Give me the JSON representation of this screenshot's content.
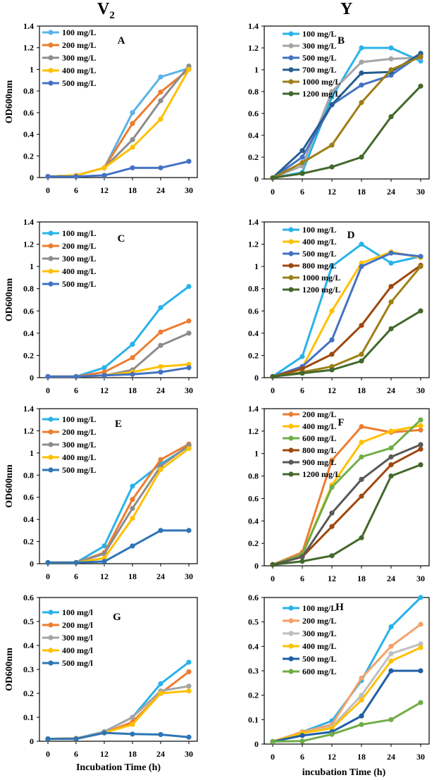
{
  "column_titles": {
    "left": "V",
    "left_sub": "2",
    "right": "Y"
  },
  "chart_data": [
    {
      "panel": "A",
      "type": "line",
      "x": [
        0,
        6,
        12,
        18,
        24,
        30
      ],
      "ylim": [
        0,
        1.4
      ],
      "yticks": [
        0,
        0.2,
        0.4,
        0.6,
        0.8,
        1,
        1.2,
        1.4
      ],
      "ylabel": "OD600nm",
      "xlabel": "",
      "series": [
        {
          "name": "100 mg/L",
          "color": "#5BB3E6",
          "values": [
            0.01,
            0.02,
            0.09,
            0.6,
            0.93,
            1.01
          ]
        },
        {
          "name": "200 mg/L",
          "color": "#ED7D31",
          "values": [
            0.01,
            0.02,
            0.09,
            0.5,
            0.79,
            1.0
          ]
        },
        {
          "name": "300 mg/L",
          "color": "#8C8C8C",
          "values": [
            0.01,
            0.02,
            0.09,
            0.35,
            0.71,
            1.03
          ]
        },
        {
          "name": "400 mg/L",
          "color": "#FFC000",
          "values": [
            0.01,
            0.02,
            0.09,
            0.28,
            0.54,
            1.0
          ]
        },
        {
          "name": "500 mg/L",
          "color": "#4472C4",
          "values": [
            0.01,
            0.01,
            0.02,
            0.09,
            0.09,
            0.15
          ]
        }
      ]
    },
    {
      "panel": "B",
      "type": "line",
      "x": [
        0,
        6,
        12,
        18,
        24,
        30
      ],
      "ylim": [
        0,
        1.4
      ],
      "yticks": [
        0,
        0.2,
        0.4,
        0.6,
        0.8,
        1,
        1.2,
        1.4
      ],
      "ylabel": "",
      "xlabel": "",
      "series": [
        {
          "name": "100 mg/L",
          "color": "#29B2EA",
          "values": [
            0.01,
            0.06,
            0.75,
            1.2,
            1.2,
            1.08
          ]
        },
        {
          "name": "300 mg/L",
          "color": "#A5A5A5",
          "values": [
            0.01,
            0.12,
            0.8,
            1.07,
            1.1,
            1.11
          ]
        },
        {
          "name": "500 mg/L",
          "color": "#4472C4",
          "values": [
            0.01,
            0.2,
            0.68,
            0.86,
            0.95,
            1.14
          ]
        },
        {
          "name": "700 mg/L",
          "color": "#255E91",
          "values": [
            0.01,
            0.26,
            0.68,
            0.97,
            0.98,
            1.15
          ]
        },
        {
          "name": "1000 mg/L",
          "color": "#9E7E16",
          "values": [
            0.01,
            0.15,
            0.31,
            0.7,
            1.0,
            1.12
          ]
        },
        {
          "name": "1200 mg/L",
          "color": "#43682B",
          "values": [
            0.01,
            0.05,
            0.11,
            0.2,
            0.57,
            0.85
          ]
        }
      ]
    },
    {
      "panel": "C",
      "type": "line",
      "x": [
        0,
        6,
        12,
        18,
        24,
        30
      ],
      "ylim": [
        0,
        1.4
      ],
      "yticks": [
        0,
        0.2,
        0.4,
        0.6,
        0.8,
        1,
        1.2,
        1.4
      ],
      "ylabel": "OD600nm",
      "xlabel": "",
      "series": [
        {
          "name": "100 mg/L",
          "color": "#29B2EA",
          "values": [
            0.01,
            0.01,
            0.09,
            0.3,
            0.63,
            0.82
          ]
        },
        {
          "name": "200 mg/L",
          "color": "#ED7D31",
          "values": [
            0.01,
            0.01,
            0.05,
            0.18,
            0.41,
            0.51
          ]
        },
        {
          "name": "300 mg/L",
          "color": "#8C8C8C",
          "values": [
            0.01,
            0.01,
            0.02,
            0.07,
            0.29,
            0.4
          ]
        },
        {
          "name": "400 mg/L",
          "color": "#FFC000",
          "values": [
            0.01,
            0.01,
            0.02,
            0.05,
            0.1,
            0.12
          ]
        },
        {
          "name": "500 mg/L",
          "color": "#4472C4",
          "values": [
            0.01,
            0.01,
            0.02,
            0.03,
            0.05,
            0.09
          ]
        }
      ]
    },
    {
      "panel": "D",
      "type": "line",
      "x": [
        0,
        6,
        12,
        18,
        24,
        30
      ],
      "ylim": [
        0,
        1.4
      ],
      "yticks": [
        0,
        0.2,
        0.4,
        0.6,
        0.8,
        1,
        1.2,
        1.4
      ],
      "ylabel": "",
      "xlabel": "",
      "series": [
        {
          "name": "100 mg/L",
          "color": "#29B2EA",
          "values": [
            0.01,
            0.19,
            1.0,
            1.2,
            1.03,
            1.09
          ]
        },
        {
          "name": "400 mg/L",
          "color": "#FFC000",
          "values": [
            0.01,
            0.09,
            0.6,
            1.03,
            1.13,
            1.08
          ]
        },
        {
          "name": "500 mg/L",
          "color": "#4472C4",
          "values": [
            0.01,
            0.1,
            0.34,
            1.0,
            1.12,
            1.09
          ]
        },
        {
          "name": "800 mg/L",
          "color": "#9E480E",
          "values": [
            0.01,
            0.08,
            0.21,
            0.47,
            0.82,
            1.01
          ]
        },
        {
          "name": "1000 mg/L",
          "color": "#9E7E16",
          "values": [
            0.01,
            0.05,
            0.1,
            0.21,
            0.68,
            1.0
          ]
        },
        {
          "name": "1200 mg/L",
          "color": "#43682B",
          "values": [
            0.01,
            0.04,
            0.07,
            0.15,
            0.44,
            0.6
          ]
        }
      ]
    },
    {
      "panel": "E",
      "type": "line",
      "x": [
        0,
        6,
        12,
        18,
        24,
        30
      ],
      "ylim": [
        0,
        1.4
      ],
      "yticks": [
        0,
        0.2,
        0.4,
        0.6,
        0.8,
        1,
        1.2,
        1.4
      ],
      "ylabel": "OD600nm",
      "xlabel": "",
      "series": [
        {
          "name": "100 mg/L",
          "color": "#29B2EA",
          "values": [
            0.01,
            0.01,
            0.16,
            0.7,
            0.9,
            1.06
          ]
        },
        {
          "name": "200 mg/L",
          "color": "#ED7D31",
          "values": [
            0.01,
            0.01,
            0.1,
            0.58,
            0.94,
            1.08
          ]
        },
        {
          "name": "300 mg/L",
          "color": "#8C8C8C",
          "values": [
            0.01,
            0.01,
            0.09,
            0.5,
            0.88,
            1.07
          ]
        },
        {
          "name": "400 mg/L",
          "color": "#FFC000",
          "values": [
            0.01,
            0.01,
            0.05,
            0.41,
            0.85,
            1.04
          ]
        },
        {
          "name": "500 mg/L",
          "color": "#2E75B6",
          "values": [
            0.01,
            0.01,
            0.02,
            0.16,
            0.3,
            0.3
          ]
        }
      ]
    },
    {
      "panel": "F",
      "type": "line",
      "x": [
        0,
        6,
        12,
        18,
        24,
        30
      ],
      "ylim": [
        0,
        1.4
      ],
      "yticks": [
        0,
        0.2,
        0.4,
        0.6,
        0.8,
        1,
        1.2,
        1.4
      ],
      "ylabel": "",
      "xlabel": "",
      "series": [
        {
          "name": "200 mg/L",
          "color": "#ED7D31",
          "values": [
            0.01,
            0.12,
            0.94,
            1.24,
            1.19,
            1.21
          ]
        },
        {
          "name": "400 mg/L",
          "color": "#FFC000",
          "values": [
            0.01,
            0.1,
            0.72,
            1.1,
            1.2,
            1.25
          ]
        },
        {
          "name": "600 mg/L",
          "color": "#70AD47",
          "values": [
            0.01,
            0.1,
            0.7,
            0.97,
            1.05,
            1.3
          ]
        },
        {
          "name": "800 mg/L",
          "color": "#9E480E",
          "values": [
            0.01,
            0.08,
            0.35,
            0.62,
            0.9,
            1.04
          ]
        },
        {
          "name": "900 mg/L",
          "color": "#595959",
          "values": [
            0.01,
            0.08,
            0.47,
            0.77,
            0.97,
            1.08
          ]
        },
        {
          "name": "1200 mg/L",
          "color": "#43682B",
          "values": [
            0.01,
            0.04,
            0.09,
            0.25,
            0.8,
            0.9
          ]
        }
      ]
    },
    {
      "panel": "G",
      "type": "line",
      "x": [
        0,
        6,
        12,
        18,
        24,
        30
      ],
      "ylim": [
        0,
        0.6
      ],
      "yticks": [
        0,
        0.1,
        0.2,
        0.3,
        0.4,
        0.5,
        0.6
      ],
      "ylabel": "OD600nm",
      "xlabel": "Incubation Time (h)",
      "series": [
        {
          "name": "100 mg/l",
          "color": "#29B2EA",
          "values": [
            0.01,
            0.012,
            0.04,
            0.1,
            0.24,
            0.33
          ]
        },
        {
          "name": "200 mg/l",
          "color": "#ED7D31",
          "values": [
            0.01,
            0.012,
            0.035,
            0.08,
            0.2,
            0.29
          ]
        },
        {
          "name": "300 mg/l",
          "color": "#A5A5A5",
          "values": [
            0.01,
            0.01,
            0.04,
            0.1,
            0.21,
            0.23
          ]
        },
        {
          "name": "400 mg/l",
          "color": "#FFC000",
          "values": [
            0.01,
            0.01,
            0.035,
            0.07,
            0.2,
            0.21
          ]
        },
        {
          "name": "500 mg/l",
          "color": "#2E75B6",
          "values": [
            0.01,
            0.01,
            0.035,
            0.03,
            0.028,
            0.017
          ]
        }
      ]
    },
    {
      "panel": "H",
      "type": "line",
      "x": [
        0,
        6,
        12,
        18,
        24,
        30
      ],
      "ylim": [
        0,
        0.6
      ],
      "yticks": [
        0,
        0.1,
        0.2,
        0.3,
        0.4,
        0.5,
        0.6
      ],
      "ylabel": "",
      "xlabel": "incubation Time (h)",
      "series": [
        {
          "name": "100 mg/L",
          "color": "#29B2EA",
          "values": [
            0.01,
            0.05,
            0.095,
            0.26,
            0.48,
            0.6
          ]
        },
        {
          "name": "200 mg/L",
          "color": "#F4A16A",
          "values": [
            0.01,
            0.05,
            0.08,
            0.27,
            0.4,
            0.49
          ]
        },
        {
          "name": "300 mg/L",
          "color": "#BFBFBF",
          "values": [
            0.01,
            0.045,
            0.07,
            0.2,
            0.37,
            0.41
          ]
        },
        {
          "name": "400 mg/L",
          "color": "#FFC000",
          "values": [
            0.01,
            0.045,
            0.065,
            0.18,
            0.34,
            0.395
          ]
        },
        {
          "name": "500 mg/L",
          "color": "#1F5FA6",
          "values": [
            0.01,
            0.035,
            0.05,
            0.115,
            0.3,
            0.3
          ]
        },
        {
          "name": "600 mg/L",
          "color": "#70AD47",
          "values": [
            0.01,
            0.012,
            0.04,
            0.08,
            0.1,
            0.17
          ]
        }
      ]
    }
  ]
}
